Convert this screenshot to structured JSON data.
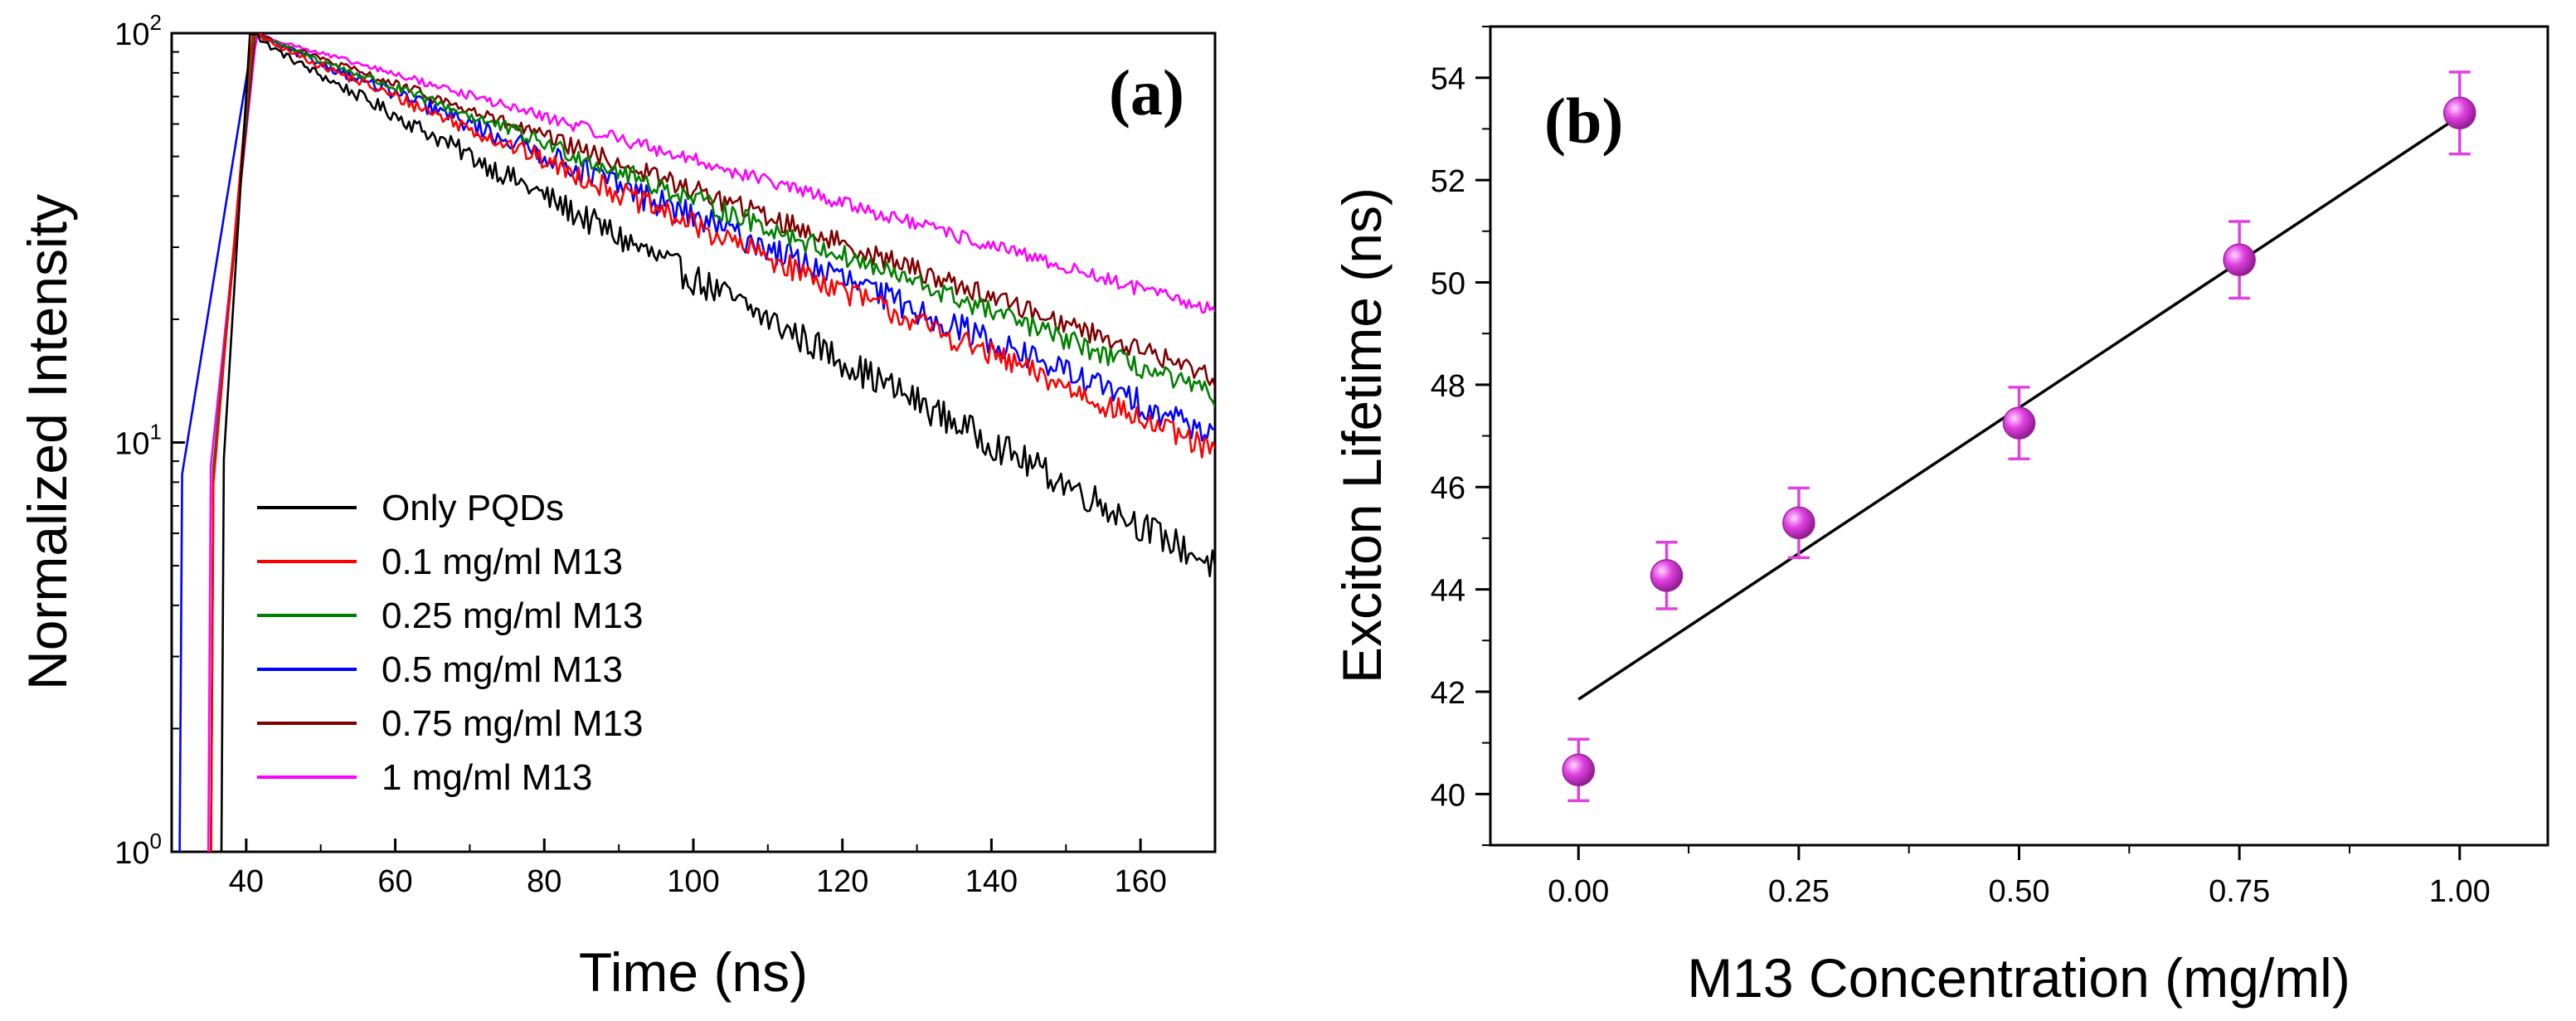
{
  "chart_data": [
    {
      "type": "line",
      "panel_label": "(a)",
      "xlabel": "Time (ns)",
      "ylabel": "Normalized Intensity",
      "xlim": [
        30,
        170
      ],
      "ylim": [
        1,
        100
      ],
      "yscale": "log",
      "x_ticks": [
        40,
        60,
        80,
        100,
        120,
        140,
        160
      ],
      "y_ticks": [
        {
          "value": 1,
          "base": "10",
          "exp": "0"
        },
        {
          "value": 10,
          "base": "10",
          "exp": "1"
        },
        {
          "value": 100,
          "base": "10",
          "exp": "2"
        }
      ],
      "legend_position": "bottom-left",
      "series": [
        {
          "name": "Only PQDs",
          "color": "#000000",
          "onset": 36.8,
          "peak_time": 40.5,
          "end_value": 5.0,
          "noise": 0.09
        },
        {
          "name": "0.1 mg/ml M13",
          "color": "#ff0000",
          "onset": 35.6,
          "peak_time": 40.8,
          "end_value": 9.5,
          "noise": 0.07
        },
        {
          "name": "0.25 mg/ml M13",
          "color": "#008000",
          "onset": 35.4,
          "peak_time": 41.0,
          "end_value": 13.0,
          "noise": 0.06
        },
        {
          "name": "0.5 mg/ml M13",
          "color": "#0000ff",
          "onset": 31.2,
          "peak_time": 41.0,
          "end_value": 10.5,
          "noise": 0.08
        },
        {
          "name": "0.75 mg/ml M13",
          "color": "#800000",
          "onset": 35.4,
          "peak_time": 41.2,
          "end_value": 14.5,
          "noise": 0.06
        },
        {
          "name": "1 mg/ml M13",
          "color": "#ff00ff",
          "onset": 35.0,
          "peak_time": 41.4,
          "end_value": 21.0,
          "noise": 0.04
        }
      ]
    },
    {
      "type": "scatter",
      "panel_label": "(b)",
      "xlabel": "M13 Concentration (mg/ml)",
      "ylabel": "Exciton Lifetime (ns)",
      "xlim": [
        -0.1,
        1.1
      ],
      "ylim": [
        39,
        55
      ],
      "x_ticks": [
        "0.00",
        "0.25",
        "0.50",
        "0.75",
        "1.00"
      ],
      "y_ticks": [
        "40",
        "42",
        "44",
        "46",
        "48",
        "50",
        "52",
        "54"
      ],
      "x": [
        0.0,
        0.1,
        0.25,
        0.5,
        0.75,
        1.0
      ],
      "y": [
        40.47,
        44.27,
        45.3,
        47.25,
        50.44,
        53.31
      ],
      "error": [
        0.6,
        0.65,
        0.68,
        0.7,
        0.75,
        0.8
      ],
      "marker_color": "#e040e0",
      "fit_line": {
        "x": [
          0.0,
          1.0
        ],
        "y": [
          41.85,
          53.25
        ],
        "color": "#000000"
      }
    }
  ]
}
